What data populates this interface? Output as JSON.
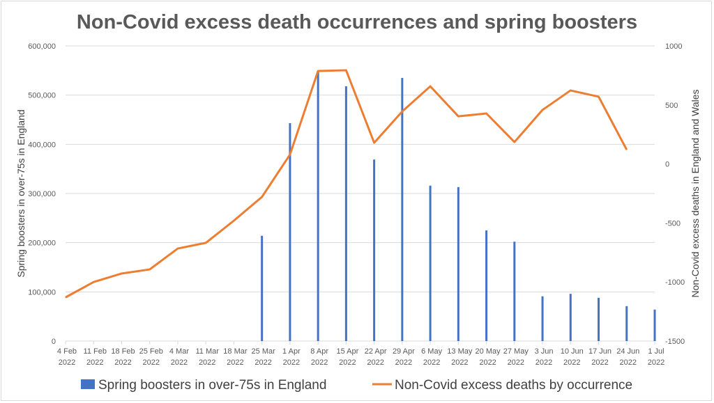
{
  "chart_data": {
    "type": "bar+line",
    "title": "Non-Covid excess death occurrences and spring boosters",
    "categories": [
      [
        "4 Feb",
        "2022"
      ],
      [
        "11 Feb",
        "2022"
      ],
      [
        "18 Feb",
        "2022"
      ],
      [
        "25 Feb",
        "2022"
      ],
      [
        "4 Mar",
        "2022"
      ],
      [
        "11 Mar",
        "2022"
      ],
      [
        "18 Mar",
        "2022"
      ],
      [
        "25 Mar",
        "2022"
      ],
      [
        "1 Apr",
        "2022"
      ],
      [
        "8 Apr",
        "2022"
      ],
      [
        "15 Apr",
        "2022"
      ],
      [
        "22 Apr",
        "2022"
      ],
      [
        "29 Apr",
        "2022"
      ],
      [
        "6 May",
        "2022"
      ],
      [
        "13 May",
        "2022"
      ],
      [
        "20 May",
        "2022"
      ],
      [
        "27 May",
        "2022"
      ],
      [
        "3 Jun",
        "2022"
      ],
      [
        "10 Jun",
        "2022"
      ],
      [
        "17 Jun",
        "2022"
      ],
      [
        "24 Jun",
        "2022"
      ],
      [
        "1 Jul",
        "2022"
      ]
    ],
    "series": [
      {
        "name": "Spring boosters in over-75s in England",
        "type": "bar",
        "axis": "left",
        "color": "#4472c4",
        "values": [
          0,
          0,
          0,
          0,
          0,
          0,
          0,
          214000,
          443000,
          549000,
          518000,
          369000,
          535000,
          316000,
          313000,
          225000,
          202000,
          91000,
          96000,
          88000,
          71000,
          64000
        ]
      },
      {
        "name": "Non-Covid excess deaths by occurrence",
        "type": "line",
        "axis": "right",
        "color": "#ed7d31",
        "values": [
          -1130,
          -1000,
          -928,
          -893,
          -716,
          -668,
          -480,
          -279,
          80,
          788,
          794,
          180,
          445,
          658,
          404,
          428,
          186,
          458,
          623,
          570,
          121,
          null
        ]
      }
    ],
    "ylabel": "Spring boosters in over-75s in England",
    "ylabel_right": "Non-Covid excess deaths in England and Wales",
    "ylim": [
      0,
      600000
    ],
    "ylim_right": [
      -1500,
      1000
    ],
    "yticks": [
      "0",
      "100,000",
      "200,000",
      "300,000",
      "400,000",
      "500,000",
      "600,000"
    ],
    "yticks_right": [
      "-1500",
      "-1000",
      "-500",
      "0",
      "500",
      "1000"
    ],
    "grid": true,
    "legend_position": "bottom"
  }
}
